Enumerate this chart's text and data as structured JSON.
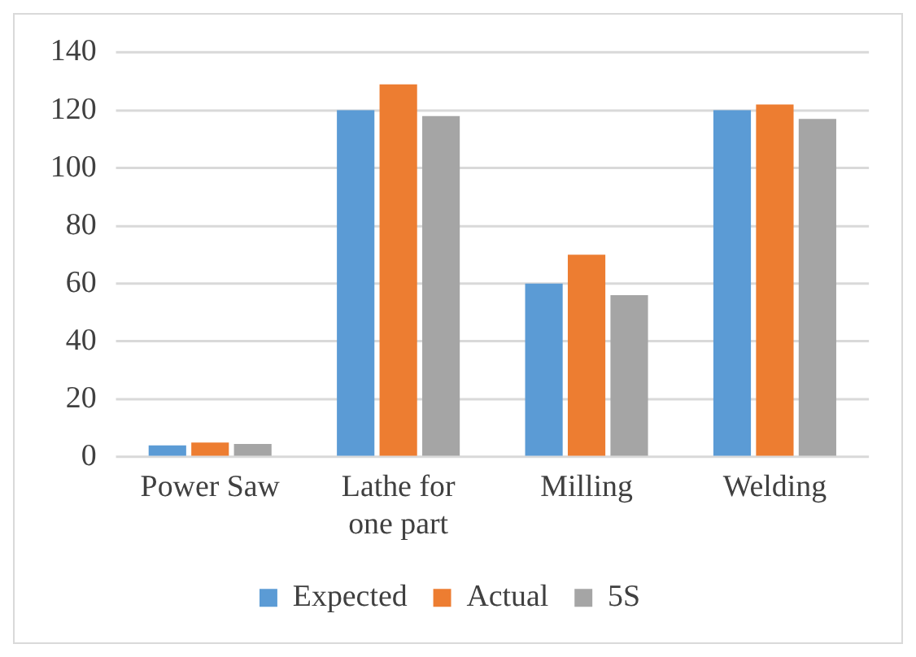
{
  "chart_data": {
    "type": "bar",
    "categories": [
      "Power Saw",
      "Lathe for one part",
      "Milling",
      "Welding"
    ],
    "series": [
      {
        "name": "Expected",
        "color": "#5b9bd5",
        "values": [
          4,
          120,
          60,
          120
        ]
      },
      {
        "name": "Actual",
        "color": "#ed7d31",
        "values": [
          5,
          129,
          70,
          122
        ]
      },
      {
        "name": "5S",
        "color": "#a5a5a5",
        "values": [
          4.5,
          118,
          56,
          117
        ]
      }
    ],
    "ylim": [
      0,
      140
    ],
    "yticks": [
      0,
      20,
      40,
      60,
      80,
      100,
      120,
      140
    ],
    "grid": true,
    "legend": "bottom"
  }
}
